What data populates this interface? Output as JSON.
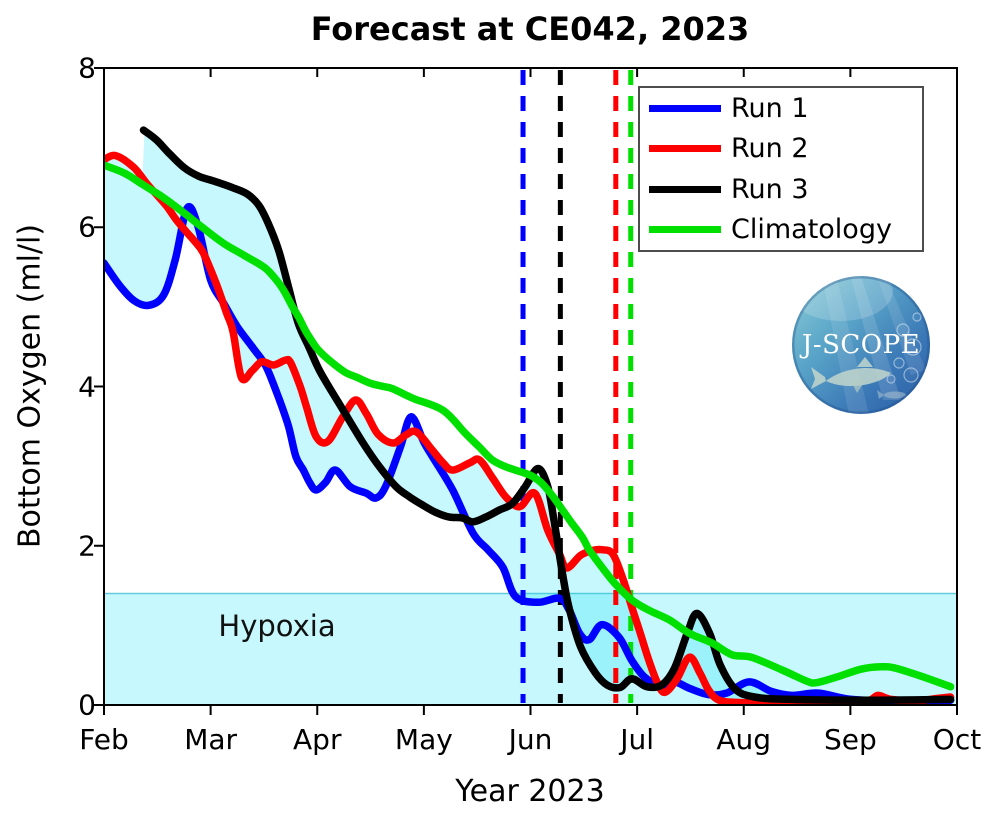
{
  "chart_data": {
    "type": "line",
    "title": "Forecast at CE042, 2023",
    "xlabel": "Year 2023",
    "ylabel": "Bottom Oxygen (ml/l)",
    "x_tick_labels": [
      "Feb",
      "Mar",
      "Apr",
      "May",
      "Jun",
      "Jul",
      "Aug",
      "Sep",
      "Oct"
    ],
    "y_tick_labels": [
      "0",
      "2",
      "4",
      "6",
      "8"
    ],
    "y_tick_values": [
      0,
      2,
      4,
      6,
      8
    ],
    "ylim": [
      0,
      8
    ],
    "xlim_months_from_feb": [
      0,
      8
    ],
    "grid": false,
    "legend_position": "top-right",
    "hypoxia": {
      "label": "Hypoxia",
      "threshold": 1.4,
      "band_color": "rgba(0,225,245,0.22)",
      "edge_color": "rgba(0,160,190,0.55)"
    },
    "envelope_fill_color": "rgba(0,225,245,0.22)",
    "series": [
      {
        "name": "Run 1",
        "color": "#0000ff",
        "points": [
          [
            0,
            5.55
          ],
          [
            0.14,
            5.28
          ],
          [
            0.28,
            5.08
          ],
          [
            0.42,
            5.02
          ],
          [
            0.56,
            5.15
          ],
          [
            0.67,
            5.6
          ],
          [
            0.78,
            6.24
          ],
          [
            0.88,
            6.02
          ],
          [
            1.0,
            5.34
          ],
          [
            1.12,
            5.05
          ],
          [
            1.25,
            4.75
          ],
          [
            1.4,
            4.48
          ],
          [
            1.52,
            4.25
          ],
          [
            1.64,
            3.85
          ],
          [
            1.73,
            3.5
          ],
          [
            1.8,
            3.12
          ],
          [
            1.87,
            2.95
          ],
          [
            1.93,
            2.79
          ],
          [
            1.99,
            2.7
          ],
          [
            2.08,
            2.8
          ],
          [
            2.17,
            2.95
          ],
          [
            2.31,
            2.74
          ],
          [
            2.46,
            2.66
          ],
          [
            2.55,
            2.6
          ],
          [
            2.64,
            2.74
          ],
          [
            2.78,
            3.24
          ],
          [
            2.88,
            3.62
          ],
          [
            3.0,
            3.3
          ],
          [
            3.08,
            3.12
          ],
          [
            3.27,
            2.7
          ],
          [
            3.46,
            2.16
          ],
          [
            3.6,
            1.95
          ],
          [
            3.74,
            1.73
          ],
          [
            3.86,
            1.36
          ],
          [
            4.07,
            1.29
          ],
          [
            4.27,
            1.34
          ],
          [
            4.36,
            1.2
          ],
          [
            4.46,
            0.9
          ],
          [
            4.55,
            0.82
          ],
          [
            4.67,
            1.01
          ],
          [
            4.83,
            0.85
          ],
          [
            4.95,
            0.56
          ],
          [
            5.07,
            0.35
          ],
          [
            5.23,
            0.23
          ],
          [
            5.35,
            0.29
          ],
          [
            5.49,
            0.21
          ],
          [
            5.67,
            0.13
          ],
          [
            5.84,
            0.15
          ],
          [
            6.05,
            0.29
          ],
          [
            6.26,
            0.17
          ],
          [
            6.45,
            0.12
          ],
          [
            6.7,
            0.15
          ],
          [
            7.01,
            0.07
          ],
          [
            7.48,
            0.05
          ],
          [
            7.94,
            0.06
          ]
        ]
      },
      {
        "name": "Run 2",
        "color": "#ff0000",
        "points": [
          [
            0,
            6.85
          ],
          [
            0.11,
            6.9
          ],
          [
            0.28,
            6.75
          ],
          [
            0.4,
            6.55
          ],
          [
            0.5,
            6.4
          ],
          [
            0.59,
            6.26
          ],
          [
            0.68,
            6.09
          ],
          [
            0.78,
            5.93
          ],
          [
            0.84,
            5.84
          ],
          [
            0.93,
            5.68
          ],
          [
            1.05,
            5.3
          ],
          [
            1.15,
            4.92
          ],
          [
            1.21,
            4.69
          ],
          [
            1.29,
            4.11
          ],
          [
            1.39,
            4.2
          ],
          [
            1.48,
            4.31
          ],
          [
            1.59,
            4.27
          ],
          [
            1.7,
            4.33
          ],
          [
            1.75,
            4.3
          ],
          [
            1.84,
            4.0
          ],
          [
            1.9,
            3.74
          ],
          [
            1.99,
            3.37
          ],
          [
            2.1,
            3.31
          ],
          [
            2.24,
            3.62
          ],
          [
            2.36,
            3.83
          ],
          [
            2.46,
            3.66
          ],
          [
            2.57,
            3.4
          ],
          [
            2.71,
            3.29
          ],
          [
            2.83,
            3.39
          ],
          [
            2.93,
            3.43
          ],
          [
            3.08,
            3.2
          ],
          [
            3.18,
            3.04
          ],
          [
            3.27,
            2.95
          ],
          [
            3.43,
            3.04
          ],
          [
            3.52,
            3.08
          ],
          [
            3.64,
            2.86
          ],
          [
            3.77,
            2.61
          ],
          [
            3.9,
            2.49
          ],
          [
            4.04,
            2.66
          ],
          [
            4.16,
            2.2
          ],
          [
            4.27,
            1.9
          ],
          [
            4.34,
            1.72
          ],
          [
            4.47,
            1.88
          ],
          [
            4.58,
            1.94
          ],
          [
            4.67,
            1.95
          ],
          [
            4.77,
            1.9
          ],
          [
            4.86,
            1.61
          ],
          [
            4.95,
            1.23
          ],
          [
            5.03,
            0.9
          ],
          [
            5.11,
            0.56
          ],
          [
            5.19,
            0.28
          ],
          [
            5.26,
            0.16
          ],
          [
            5.37,
            0.32
          ],
          [
            5.49,
            0.6
          ],
          [
            5.59,
            0.4
          ],
          [
            5.67,
            0.19
          ],
          [
            5.77,
            0.06
          ],
          [
            5.98,
            0.03
          ],
          [
            6.45,
            0.02
          ],
          [
            7.01,
            0.04
          ],
          [
            7.18,
            0.06
          ],
          [
            7.26,
            0.12
          ],
          [
            7.38,
            0.07
          ],
          [
            7.62,
            0.05
          ],
          [
            7.8,
            0.08
          ],
          [
            7.94,
            0.1
          ]
        ]
      },
      {
        "name": "Run 3",
        "color": "#000000",
        "points": [
          [
            0.37,
            7.22
          ],
          [
            0.49,
            7.1
          ],
          [
            0.61,
            6.93
          ],
          [
            0.75,
            6.75
          ],
          [
            0.89,
            6.64
          ],
          [
            1.03,
            6.58
          ],
          [
            1.2,
            6.5
          ],
          [
            1.34,
            6.42
          ],
          [
            1.45,
            6.28
          ],
          [
            1.54,
            6.05
          ],
          [
            1.64,
            5.7
          ],
          [
            1.73,
            5.25
          ],
          [
            1.82,
            4.8
          ],
          [
            1.92,
            4.5
          ],
          [
            2.03,
            4.18
          ],
          [
            2.24,
            3.71
          ],
          [
            2.43,
            3.29
          ],
          [
            2.59,
            2.98
          ],
          [
            2.74,
            2.74
          ],
          [
            2.87,
            2.61
          ],
          [
            2.99,
            2.51
          ],
          [
            3.11,
            2.42
          ],
          [
            3.24,
            2.36
          ],
          [
            3.36,
            2.35
          ],
          [
            3.46,
            2.3
          ],
          [
            3.58,
            2.36
          ],
          [
            3.71,
            2.45
          ],
          [
            3.83,
            2.53
          ],
          [
            3.95,
            2.74
          ],
          [
            4.07,
            2.97
          ],
          [
            4.16,
            2.75
          ],
          [
            4.22,
            2.32
          ],
          [
            4.3,
            1.65
          ],
          [
            4.36,
            1.23
          ],
          [
            4.47,
            0.73
          ],
          [
            4.61,
            0.4
          ],
          [
            4.72,
            0.25
          ],
          [
            4.84,
            0.22
          ],
          [
            4.95,
            0.33
          ],
          [
            5.09,
            0.23
          ],
          [
            5.23,
            0.25
          ],
          [
            5.35,
            0.46
          ],
          [
            5.47,
            0.9
          ],
          [
            5.56,
            1.15
          ],
          [
            5.68,
            0.9
          ],
          [
            5.78,
            0.5
          ],
          [
            5.92,
            0.2
          ],
          [
            6.1,
            0.1
          ],
          [
            6.45,
            0.07
          ],
          [
            7.2,
            0.06
          ],
          [
            7.94,
            0.07
          ]
        ]
      },
      {
        "name": "Climatology",
        "color": "#00e000",
        "points": [
          [
            0,
            6.78
          ],
          [
            0.19,
            6.68
          ],
          [
            0.37,
            6.53
          ],
          [
            0.56,
            6.37
          ],
          [
            0.75,
            6.18
          ],
          [
            0.93,
            5.99
          ],
          [
            1.12,
            5.8
          ],
          [
            1.31,
            5.65
          ],
          [
            1.5,
            5.5
          ],
          [
            1.59,
            5.38
          ],
          [
            1.68,
            5.22
          ],
          [
            1.76,
            5.02
          ],
          [
            1.83,
            4.86
          ],
          [
            1.89,
            4.7
          ],
          [
            1.96,
            4.55
          ],
          [
            2.01,
            4.46
          ],
          [
            2.13,
            4.31
          ],
          [
            2.26,
            4.18
          ],
          [
            2.38,
            4.11
          ],
          [
            2.5,
            4.04
          ],
          [
            2.62,
            4.0
          ],
          [
            2.71,
            3.97
          ],
          [
            2.9,
            3.85
          ],
          [
            3.18,
            3.7
          ],
          [
            3.39,
            3.41
          ],
          [
            3.52,
            3.24
          ],
          [
            3.64,
            3.08
          ],
          [
            3.77,
            2.99
          ],
          [
            3.95,
            2.91
          ],
          [
            4.02,
            2.87
          ],
          [
            4.11,
            2.78
          ],
          [
            4.21,
            2.62
          ],
          [
            4.3,
            2.45
          ],
          [
            4.39,
            2.28
          ],
          [
            4.49,
            2.1
          ],
          [
            4.55,
            1.95
          ],
          [
            4.67,
            1.73
          ],
          [
            4.79,
            1.53
          ],
          [
            4.95,
            1.32
          ],
          [
            5.11,
            1.19
          ],
          [
            5.3,
            1.07
          ],
          [
            5.49,
            0.9
          ],
          [
            5.7,
            0.78
          ],
          [
            5.89,
            0.63
          ],
          [
            6.07,
            0.6
          ],
          [
            6.36,
            0.44
          ],
          [
            6.59,
            0.3
          ],
          [
            6.68,
            0.28
          ],
          [
            6.87,
            0.35
          ],
          [
            7.1,
            0.45
          ],
          [
            7.29,
            0.48
          ],
          [
            7.43,
            0.46
          ],
          [
            7.71,
            0.34
          ],
          [
            7.94,
            0.23
          ]
        ]
      }
    ],
    "vertical_dashed_lines": [
      {
        "series": "Run 1",
        "color": "#0000ff",
        "x_months_from_feb": 3.93
      },
      {
        "series": "Run 3",
        "color": "#000000",
        "x_months_from_feb": 4.28
      },
      {
        "series": "Run 2",
        "color": "#ff0000",
        "x_months_from_feb": 4.8
      },
      {
        "series": "Climatology",
        "color": "#00e000",
        "x_months_from_feb": 4.94
      }
    ],
    "legend_entries": [
      "Run 1",
      "Run 2",
      "Run 3",
      "Climatology"
    ],
    "logo": {
      "text": "J-SCOPE"
    }
  }
}
